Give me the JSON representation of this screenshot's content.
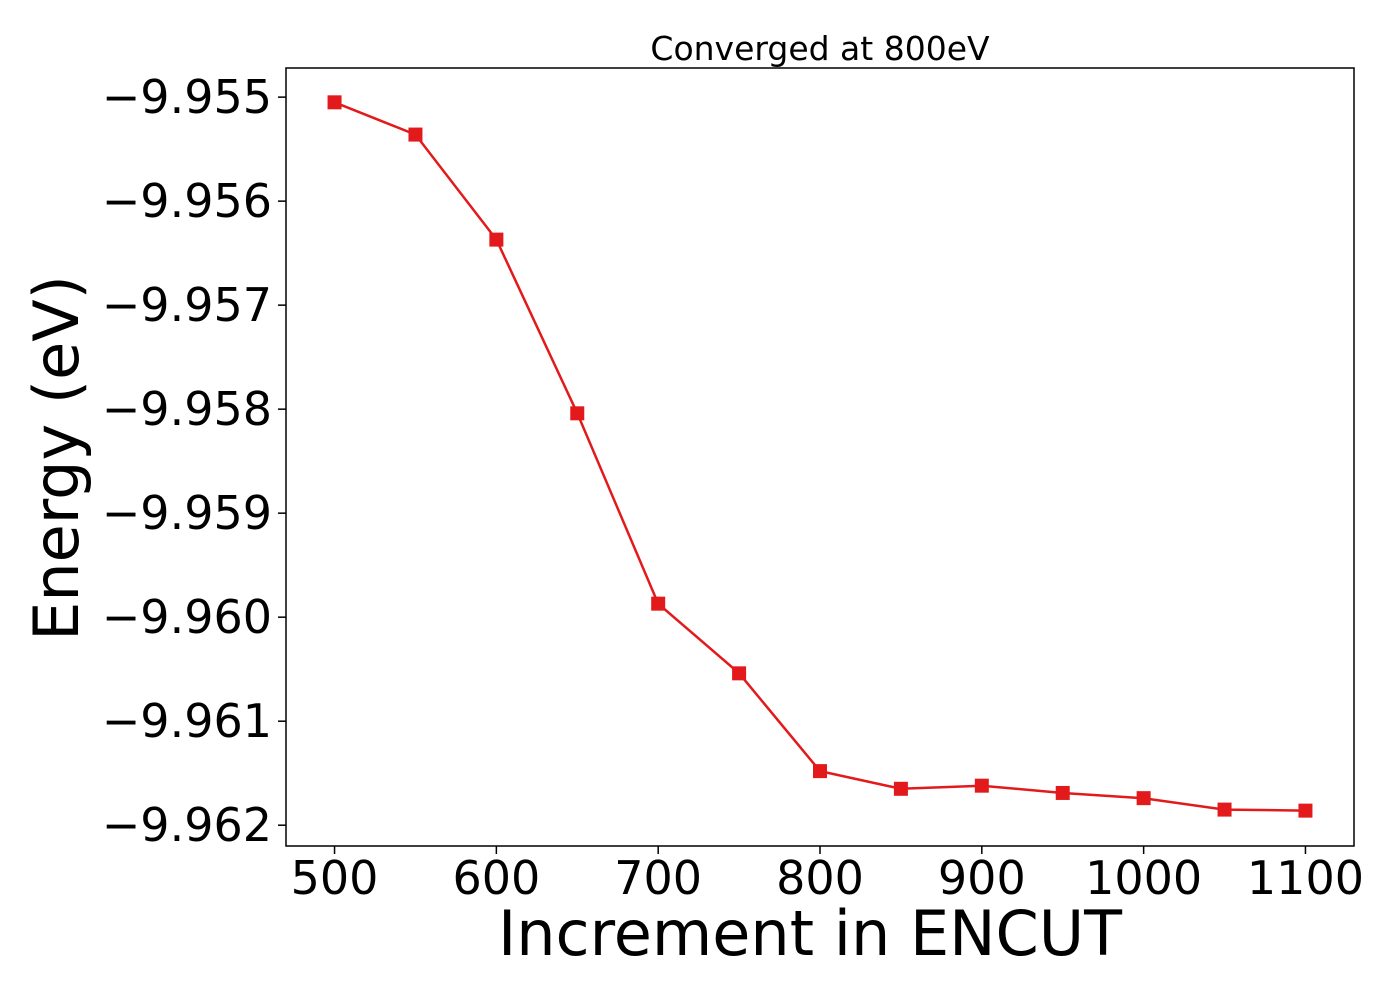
{
  "chart_data": {
    "type": "line",
    "title": "Converged at 800eV",
    "xlabel": "Increment in ENCUT",
    "ylabel": "Energy (eV)",
    "x": [
      500,
      550,
      600,
      650,
      700,
      750,
      800,
      850,
      900,
      950,
      1000,
      1050,
      1100
    ],
    "series": [
      {
        "values": [
          -9.95505,
          -9.95536,
          -9.95637,
          -9.95804,
          -9.95987,
          -9.96054,
          -9.96148,
          -9.96165,
          -9.96162,
          -9.96169,
          -9.96174,
          -9.96185,
          -9.96186
        ],
        "color": "#e31a1c",
        "marker": "square"
      }
    ],
    "xticks": [
      500,
      600,
      700,
      800,
      900,
      1000,
      1100
    ],
    "xtick_labels": [
      "500",
      "600",
      "700",
      "800",
      "900",
      "1000",
      "1100"
    ],
    "yticks": [
      -9.955,
      -9.956,
      -9.957,
      -9.958,
      -9.959,
      -9.96,
      -9.961,
      -9.962
    ],
    "ytick_labels": [
      "−9.955",
      "−9.956",
      "−9.957",
      "−9.958",
      "−9.959",
      "−9.960",
      "−9.961",
      "−9.962"
    ],
    "xlim": [
      470,
      1130
    ],
    "ylim": [
      -9.9622,
      -9.95472
    ],
    "grid": false,
    "legend": "none"
  }
}
